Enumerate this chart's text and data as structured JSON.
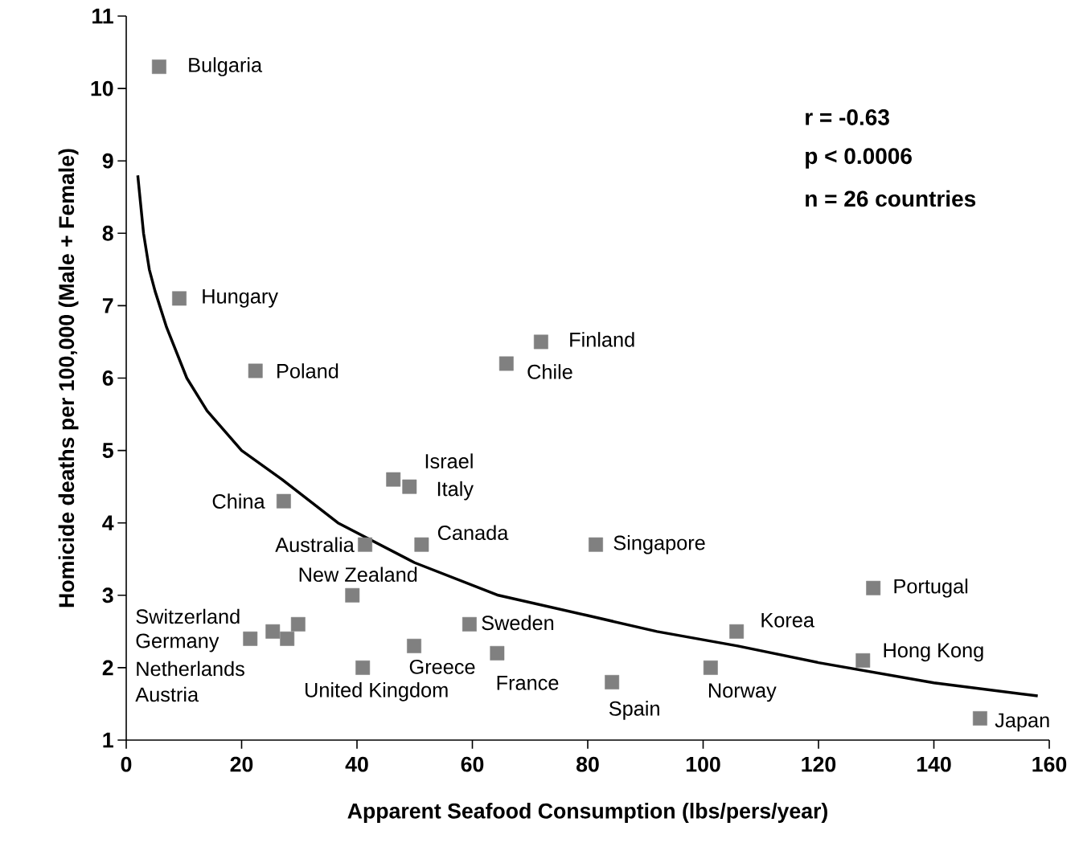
{
  "chart_data": {
    "type": "scatter",
    "xlabel": "Apparent Seafood Consumption  (lbs/pers/year)",
    "ylabel": "Homicide deaths per 100,000 (Male + Female)",
    "xlim": [
      0,
      160
    ],
    "xticks": [
      0,
      20,
      40,
      60,
      80,
      100,
      120,
      140,
      160
    ],
    "ylim": [
      1,
      11
    ],
    "yticks": [
      1,
      2,
      3,
      4,
      5,
      6,
      7,
      8,
      9,
      10,
      11
    ],
    "series": [
      {
        "marker": "square",
        "color": "#808080",
        "x": [
          5.7,
          9.2,
          22.4,
          71.9,
          65.9,
          46.3,
          49.1,
          27.3,
          41.4,
          51.2,
          81.4,
          39.2,
          129.5,
          29.8,
          25.4,
          21.5,
          27.9,
          59.5,
          49.9,
          64.3,
          41.0,
          105.8,
          101.3,
          127.7,
          84.2,
          148.0
        ],
        "values": [
          10.3,
          7.1,
          6.1,
          6.5,
          6.2,
          4.6,
          4.5,
          4.3,
          3.7,
          3.7,
          3.7,
          3.0,
          3.1,
          2.6,
          2.5,
          2.4,
          2.4,
          2.6,
          2.3,
          2.2,
          2.0,
          2.5,
          2.0,
          2.1,
          1.8,
          1.3
        ]
      },
      {
        "type": "line",
        "marker": "none",
        "color": "#000000",
        "x": [
          2,
          3,
          4,
          5,
          7,
          10.5,
          14,
          20,
          27,
          36.7,
          50,
          64.5,
          80,
          92,
          106,
          120,
          140,
          158
        ],
        "values": [
          8.8,
          8.0,
          7.5,
          7.2,
          6.7,
          6.0,
          5.55,
          5.0,
          4.6,
          4.0,
          3.45,
          3.0,
          2.72,
          2.5,
          2.3,
          2.07,
          1.79,
          1.61
        ]
      }
    ],
    "annotations": [
      {
        "text": "Bulgaria",
        "x": 5.7,
        "y": 10.3
      },
      {
        "text": "Hungary",
        "x": 9.2,
        "y": 7.1
      },
      {
        "text": "Poland",
        "x": 22.4,
        "y": 6.1
      },
      {
        "text": "Finland",
        "x": 71.9,
        "y": 6.5
      },
      {
        "text": "Chile",
        "x": 65.9,
        "y": 6.2
      },
      {
        "text": "Israel",
        "x": 46.3,
        "y": 4.6
      },
      {
        "text": "Italy",
        "x": 49.1,
        "y": 4.5
      },
      {
        "text": "China",
        "x": 27.3,
        "y": 4.3
      },
      {
        "text": "Australia",
        "x": 41.4,
        "y": 3.7
      },
      {
        "text": "Canada",
        "x": 51.2,
        "y": 3.7
      },
      {
        "text": "Singapore",
        "x": 81.4,
        "y": 3.7
      },
      {
        "text": "New Zealand",
        "x": 39.2,
        "y": 3.0
      },
      {
        "text": "Portugal",
        "x": 129.5,
        "y": 3.1
      },
      "Switzerland",
      "Germany",
      "Netherlands",
      "Austria",
      {
        "text": "Sweden",
        "x": 59.5,
        "y": 2.6
      },
      {
        "text": "Greece",
        "x": 49.9,
        "y": 2.3
      },
      {
        "text": "France",
        "x": 64.3,
        "y": 2.2
      },
      {
        "text": "United Kingdom",
        "x": 41.0,
        "y": 2.0
      },
      {
        "text": "Korea",
        "x": 105.8,
        "y": 2.5
      },
      {
        "text": "Norway",
        "x": 101.3,
        "y": 2.0
      },
      {
        "text": "Hong Kong",
        "x": 127.7,
        "y": 2.1
      },
      {
        "text": "Spain",
        "x": 84.2,
        "y": 1.8
      },
      {
        "text": "Japan",
        "x": 148.0,
        "y": 1.3
      },
      "r = -0.63",
      "p <  0.0006",
      "n =  26 countries"
    ]
  }
}
